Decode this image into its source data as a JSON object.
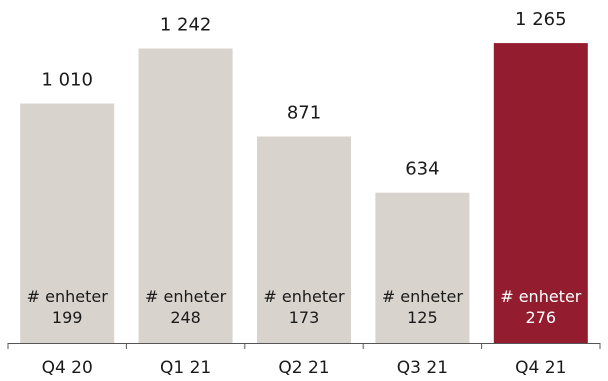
{
  "chart_data": {
    "type": "bar",
    "categories": [
      "Q4 20",
      "Q1 21",
      "Q2 21",
      "Q3 21",
      "Q4 21"
    ],
    "values": [
      1010,
      1242,
      871,
      634,
      1265
    ],
    "value_labels": [
      "1 010",
      "1 242",
      "871",
      "634",
      "1 265"
    ],
    "inner_label_text": [
      "# enheter",
      "# enheter",
      "# enheter",
      "# enheter",
      "# enheter"
    ],
    "inner_counts": [
      199,
      248,
      173,
      125,
      276
    ],
    "ylim": [
      0,
      1265
    ],
    "grid": false,
    "legend": "none",
    "colors": {
      "bar_default": "#d8d3cd",
      "bar_highlight": "#931c2e",
      "text_default": "#1a1a1a",
      "text_on_highlight": "#ffffff",
      "axis": "#555555"
    },
    "highlight_index": 4
  }
}
